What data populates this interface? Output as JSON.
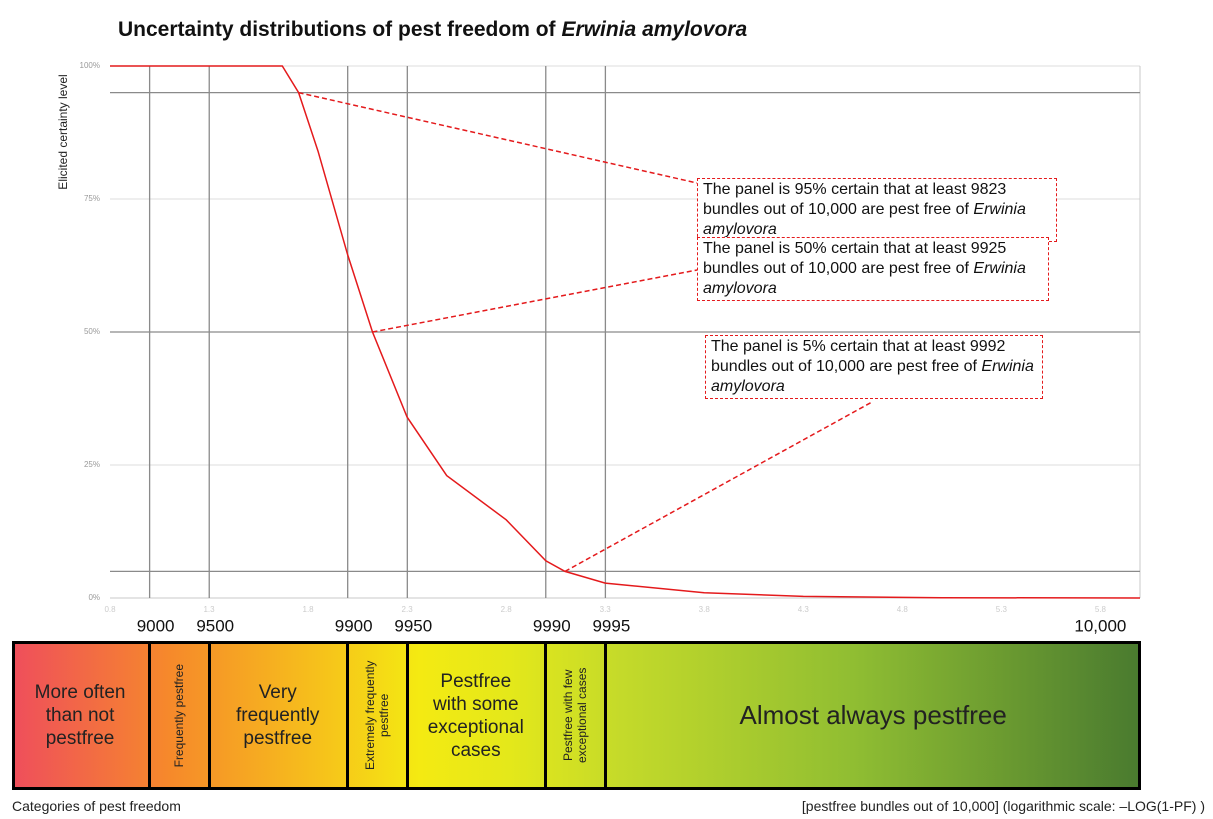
{
  "chart_data": {
    "type": "line",
    "title": "Uncertainty distributions of pest freedom of",
    "title_species": "Erwinia amylovora",
    "ylabel": "Elicited certainty level",
    "xlabel": "[pestfree bundles out of 10,000] (logarithmic scale:  –LOG(1-PF) )",
    "band_title": "Categories of pest freedom",
    "xlim": [
      0.8,
      6.0
    ],
    "xticks": [
      0.8,
      1.3,
      1.8,
      2.3,
      2.8,
      3.3,
      3.8,
      4.3,
      4.8,
      5.3,
      5.8
    ],
    "x2ticks": [
      {
        "value": 1,
        "label": "9000"
      },
      {
        "value": 1.301,
        "label": "9500"
      },
      {
        "value": 2,
        "label": "9900"
      },
      {
        "value": 2.301,
        "label": "9950"
      },
      {
        "value": 3,
        "label": "9990"
      },
      {
        "value": 3.301,
        "label": "9995"
      },
      {
        "value": 5.8,
        "label": "10,000"
      }
    ],
    "ylim": [
      0,
      100
    ],
    "yticks": [
      {
        "value": 0,
        "label": "0%"
      },
      {
        "value": 25,
        "label": "25%"
      },
      {
        "value": 50,
        "label": "50%"
      },
      {
        "value": 75,
        "label": "75%"
      },
      {
        "value": 100,
        "label": "100%"
      }
    ],
    "grid": true,
    "color": "#e41a1c",
    "x": [
      0.8,
      1.67,
      1.752,
      1.85,
      2.0,
      2.125,
      2.3,
      2.5,
      2.8,
      3.0,
      3.097,
      3.3,
      3.8,
      4.3,
      5.0,
      6.0
    ],
    "values": [
      100,
      100,
      95,
      84,
      64.5,
      50,
      34,
      23,
      14.7,
      7,
      5,
      2.8,
      1,
      0.3,
      0.05,
      0
    ],
    "annotations": [
      {
        "text": "The panel is 95% certain that at least 9823 bundles out of 10,000 are pest free of",
        "species": "Erwinia amylovora",
        "x": 1.752,
        "y": 95
      },
      {
        "text": "The panel is 50% certain that at least 9925 bundles out of 10,000 are pest free of",
        "species": "Erwinia amylovora",
        "x": 2.125,
        "y": 50
      },
      {
        "text": "The panel is 5% certain that at least 9992 bundles out of 10,000 are pest free of",
        "species": "Erwinia amylovora",
        "x": 3.097,
        "y": 5
      }
    ],
    "bands": [
      {
        "label": "More often than not pestfree",
        "vertical": false
      },
      {
        "label": "Frequently pestfree",
        "vertical": true
      },
      {
        "label": "Very frequently pestfree",
        "vertical": false
      },
      {
        "label": "Extremely frequently pestfree",
        "vertical": true
      },
      {
        "label": "Pestfree with some exceptional cases",
        "vertical": false
      },
      {
        "label": "Pestfree with few exceptional cases",
        "vertical": true
      },
      {
        "label": "Almost always pestfree",
        "vertical": false
      }
    ]
  }
}
